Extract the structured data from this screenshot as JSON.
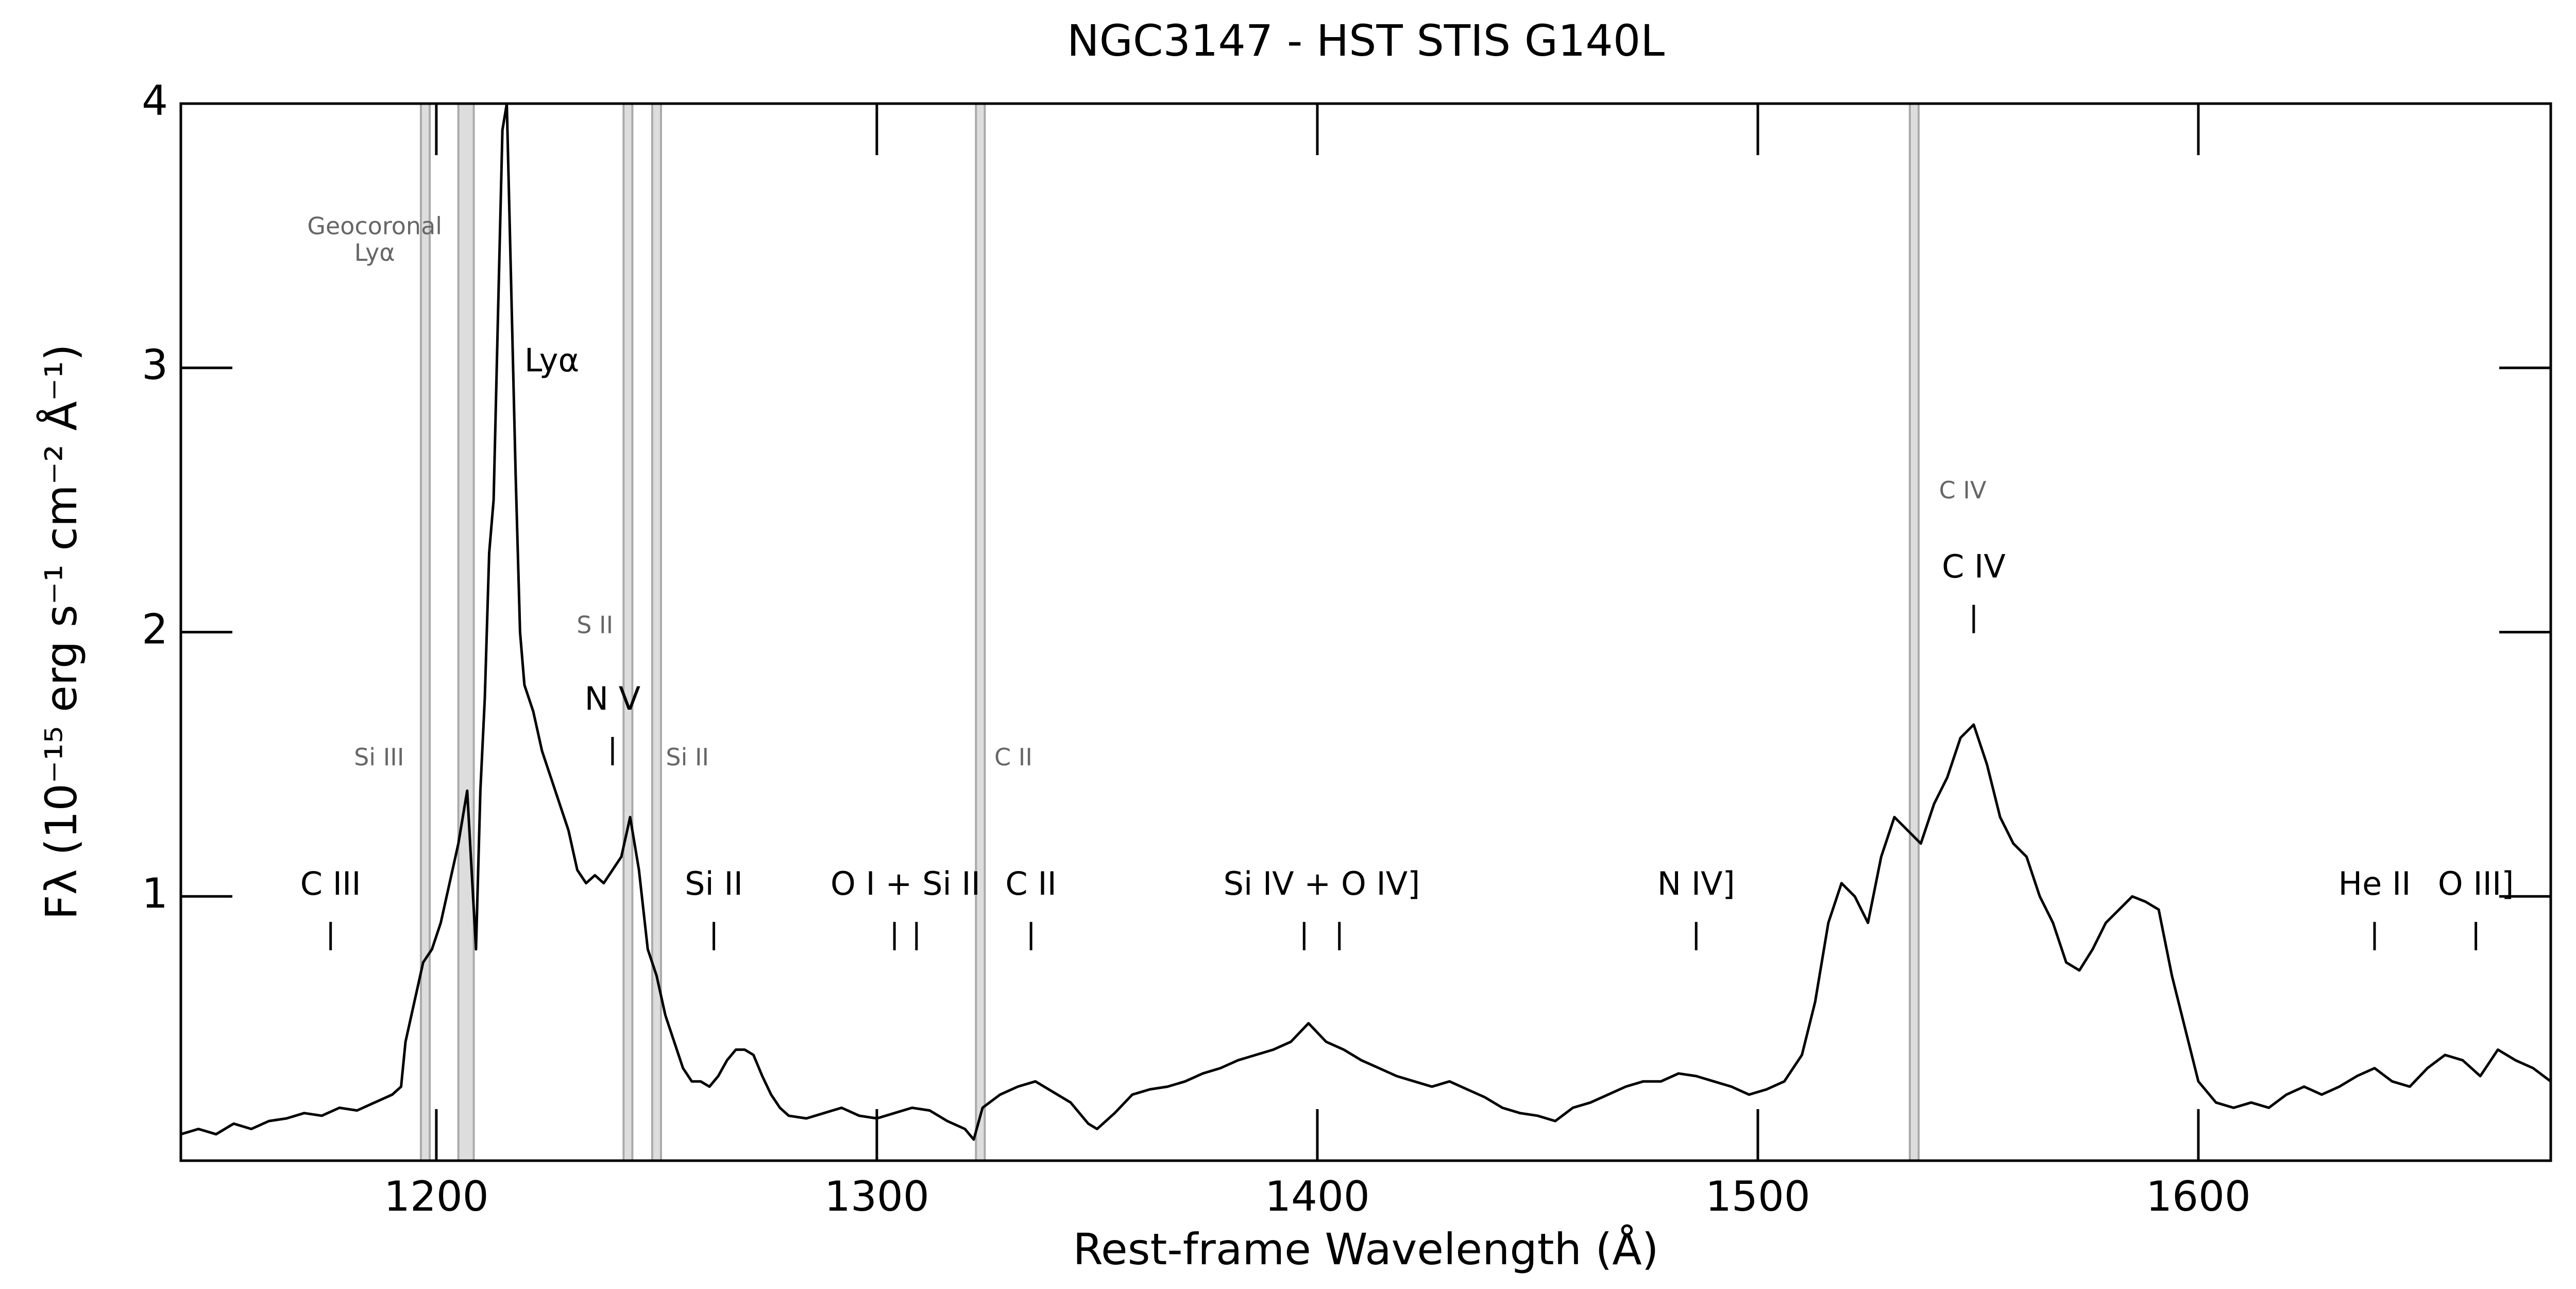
{
  "chart_data": {
    "type": "line",
    "title": "NGC3147 - HST STIS G140L",
    "xlabel": "Rest-frame Wavelength (Å)",
    "ylabel": "Fλ (10⁻¹⁵ erg s⁻¹ cm⁻² Å⁻¹)",
    "xlim": [
      1142,
      1680
    ],
    "ylim": [
      0,
      4
    ],
    "xticks": [
      1200,
      1300,
      1400,
      1500,
      1600
    ],
    "yticks": [
      1,
      2,
      3,
      4
    ],
    "color": "#000000",
    "x": [
      1142,
      1146,
      1150,
      1154,
      1158,
      1162,
      1166,
      1170,
      1174,
      1178,
      1182,
      1186,
      1190,
      1192,
      1193,
      1195,
      1197,
      1199,
      1201,
      1203,
      1205,
      1207,
      1209,
      1210,
      1211,
      1212,
      1213,
      1214,
      1215,
      1216,
      1217,
      1218,
      1219,
      1220,
      1222,
      1224,
      1226,
      1228,
      1230,
      1232,
      1234,
      1236,
      1238,
      1240,
      1242,
      1244,
      1246,
      1248,
      1250,
      1252,
      1254,
      1256,
      1258,
      1260,
      1262,
      1264,
      1266,
      1268,
      1270,
      1272,
      1274,
      1276,
      1278,
      1280,
      1284,
      1288,
      1292,
      1296,
      1300,
      1304,
      1308,
      1312,
      1316,
      1320,
      1322,
      1324,
      1328,
      1332,
      1336,
      1340,
      1344,
      1348,
      1350,
      1354,
      1358,
      1362,
      1366,
      1370,
      1374,
      1378,
      1382,
      1386,
      1390,
      1394,
      1398,
      1402,
      1406,
      1410,
      1414,
      1418,
      1422,
      1426,
      1430,
      1434,
      1438,
      1442,
      1446,
      1450,
      1454,
      1458,
      1462,
      1466,
      1470,
      1474,
      1478,
      1482,
      1486,
      1490,
      1494,
      1498,
      1502,
      1506,
      1510,
      1513,
      1516,
      1519,
      1522,
      1525,
      1528,
      1531,
      1534,
      1537,
      1540,
      1543,
      1546,
      1549,
      1552,
      1555,
      1558,
      1561,
      1564,
      1567,
      1570,
      1573,
      1576,
      1579,
      1582,
      1585,
      1588,
      1591,
      1594,
      1597,
      1600,
      1604,
      1608,
      1612,
      1616,
      1620,
      1624,
      1628,
      1632,
      1636,
      1640,
      1644,
      1648,
      1652,
      1656,
      1660,
      1664,
      1668,
      1672,
      1676,
      1680
    ],
    "values": [
      0.1,
      0.12,
      0.1,
      0.14,
      0.12,
      0.15,
      0.16,
      0.18,
      0.17,
      0.2,
      0.19,
      0.22,
      0.25,
      0.28,
      0.45,
      0.6,
      0.75,
      0.8,
      0.9,
      1.05,
      1.2,
      1.4,
      0.8,
      1.4,
      1.75,
      2.3,
      2.5,
      3.2,
      3.9,
      4.0,
      3.3,
      2.6,
      2.0,
      1.8,
      1.7,
      1.55,
      1.45,
      1.35,
      1.25,
      1.1,
      1.05,
      1.08,
      1.05,
      1.1,
      1.15,
      1.3,
      1.1,
      0.8,
      0.7,
      0.55,
      0.45,
      0.35,
      0.3,
      0.3,
      0.28,
      0.32,
      0.38,
      0.42,
      0.42,
      0.4,
      0.32,
      0.25,
      0.2,
      0.17,
      0.16,
      0.18,
      0.2,
      0.17,
      0.16,
      0.18,
      0.2,
      0.19,
      0.15,
      0.12,
      0.08,
      0.2,
      0.25,
      0.28,
      0.3,
      0.26,
      0.22,
      0.14,
      0.12,
      0.18,
      0.25,
      0.27,
      0.28,
      0.3,
      0.33,
      0.35,
      0.38,
      0.4,
      0.42,
      0.45,
      0.52,
      0.45,
      0.42,
      0.38,
      0.35,
      0.32,
      0.3,
      0.28,
      0.3,
      0.27,
      0.24,
      0.2,
      0.18,
      0.17,
      0.15,
      0.2,
      0.22,
      0.25,
      0.28,
      0.3,
      0.3,
      0.33,
      0.32,
      0.3,
      0.28,
      0.25,
      0.27,
      0.3,
      0.4,
      0.6,
      0.9,
      1.05,
      1.0,
      0.9,
      1.15,
      1.3,
      1.25,
      1.2,
      1.35,
      1.45,
      1.6,
      1.65,
      1.5,
      1.3,
      1.2,
      1.15,
      1.0,
      0.9,
      0.75,
      0.72,
      0.8,
      0.9,
      0.95,
      1.0,
      0.98,
      0.95,
      0.7,
      0.5,
      0.3,
      0.22,
      0.2,
      0.22,
      0.2,
      0.25,
      0.28,
      0.25,
      0.28,
      0.32,
      0.35,
      0.3,
      0.28,
      0.35,
      0.4,
      0.38,
      0.32,
      0.42,
      0.38,
      0.35,
      0.3
    ],
    "masked_regions": [
      [
        1196.5,
        1198.5
      ],
      [
        1205,
        1208.5
      ],
      [
        1242.5,
        1244.5
      ],
      [
        1249,
        1251
      ],
      [
        1322.5,
        1324.5
      ],
      [
        1534.5,
        1536.5
      ]
    ],
    "emission_lines": [
      {
        "label": "C III",
        "wavelengths": [
          1176
        ],
        "y": 1.04
      },
      {
        "label": "N V",
        "wavelengths": [
          1240
        ],
        "y": 1.74
      },
      {
        "label": "Si II",
        "wavelengths": [
          1263
        ],
        "y": 1.04
      },
      {
        "label": "O I + Si II",
        "wavelengths": [
          1304,
          1309
        ],
        "y": 1.04
      },
      {
        "label": "C II",
        "wavelengths": [
          1335
        ],
        "y": 1.04
      },
      {
        "label": "Si IV + O IV]",
        "wavelengths": [
          1397,
          1405
        ],
        "y": 1.04
      },
      {
        "label": "N IV]",
        "wavelengths": [
          1486
        ],
        "y": 1.04
      },
      {
        "label": "C IV",
        "wavelengths": [
          1549
        ],
        "y": 2.24
      },
      {
        "label": "He II",
        "wavelengths": [
          1640
        ],
        "y": 1.04
      },
      {
        "label": "O III]",
        "wavelengths": [
          1663
        ],
        "y": 1.04
      }
    ],
    "annotations": [
      {
        "text": "Lyα",
        "x": 1220,
        "y": 3.02
      }
    ],
    "foreground_labels": [
      {
        "text": "Geocoronal",
        "x": 1186,
        "y": 3.53
      },
      {
        "text": "Lyα",
        "x": 1186,
        "y": 3.43
      },
      {
        "text": "Si III",
        "x": 1187,
        "y": 1.52
      },
      {
        "text": "S II",
        "x": 1236,
        "y": 2.02
      },
      {
        "text": "Si II",
        "x": 1257,
        "y": 1.52
      },
      {
        "text": "C II",
        "x": 1331,
        "y": 1.52
      },
      {
        "text": "C IV",
        "x": 1546.5,
        "y": 2.53
      }
    ]
  }
}
